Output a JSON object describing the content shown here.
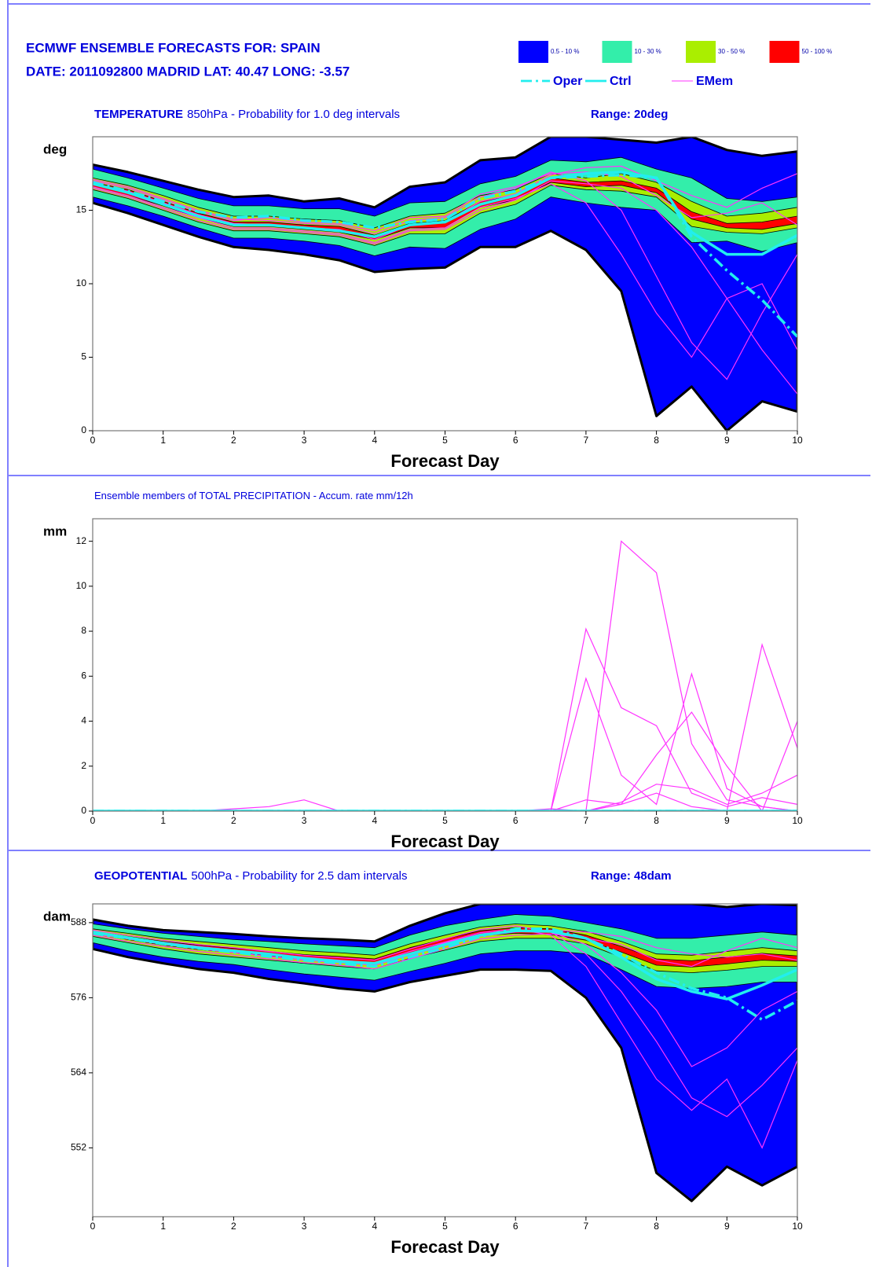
{
  "header": {
    "title": "ECMWF ENSEMBLE FORECASTS FOR:  SPAIN",
    "subtitle": "DATE: 2011092800  MADRID  LAT: 40.47  LONG: -3.57"
  },
  "legend": {
    "bands": [
      {
        "label": "0.5 - 10 %",
        "color": "#0000ff"
      },
      {
        "label": "10 - 30 %",
        "color": "#33eeaa"
      },
      {
        "label": "30 - 50 %",
        "color": "#aaee00"
      },
      {
        "label": "50 - 100 %",
        "color": "#ff0000"
      }
    ],
    "lines": [
      {
        "label": "Oper",
        "color": "#22eeee",
        "style": "dash-dot"
      },
      {
        "label": "Ctrl",
        "color": "#22eeee",
        "style": "solid"
      },
      {
        "label": "EMem",
        "color": "#ff33ff",
        "style": "thin"
      }
    ]
  },
  "chart_data": [
    {
      "type": "ensemble",
      "title": {
        "param": "TEMPERATURE",
        "detail": "850hPa - Probability for 1.0 deg intervals"
      },
      "range": "Range: 20deg",
      "ylabel": "deg",
      "xlabel": "Forecast Day",
      "x": [
        0,
        0.5,
        1,
        1.5,
        2,
        2.5,
        3,
        3.5,
        4,
        4.5,
        5,
        5.5,
        6,
        6.5,
        7,
        7.5,
        8,
        8.5,
        9,
        9.5,
        10
      ],
      "xlim": [
        0,
        10
      ],
      "xticks": [
        0,
        1,
        2,
        3,
        4,
        5,
        6,
        7,
        8,
        9,
        10
      ],
      "ylim": [
        0,
        20
      ],
      "yticks": [
        0,
        5,
        10,
        15
      ],
      "bands": [
        {
          "upper": [
            18.1,
            17.6,
            17.0,
            16.4,
            15.9,
            16.0,
            15.6,
            15.8,
            15.2,
            16.6,
            16.9,
            18.4,
            18.6,
            20,
            20,
            19.8,
            19.6,
            20,
            19.1,
            18.7,
            19.0
          ],
          "lower": [
            15.5,
            14.8,
            14.0,
            13.2,
            12.5,
            12.3,
            12.0,
            11.6,
            10.8,
            11.0,
            11.1,
            12.5,
            12.5,
            13.6,
            12.3,
            9.5,
            1.0,
            3.0,
            0.0,
            2.0,
            1.3
          ]
        },
        {
          "upper": [
            17.8,
            17.2,
            16.5,
            15.8,
            15.3,
            15.3,
            15.1,
            15.1,
            14.6,
            15.5,
            15.6,
            16.8,
            17.3,
            18.4,
            18.3,
            18.6,
            17.8,
            17.2,
            15.8,
            15.6,
            15.9
          ],
          "lower": [
            15.9,
            15.3,
            14.6,
            13.8,
            13.1,
            13.1,
            12.9,
            12.6,
            11.9,
            12.5,
            12.4,
            13.7,
            14.4,
            15.9,
            15.5,
            15.2,
            15.0,
            12.8,
            12.9,
            12.2,
            12.8
          ]
        },
        {
          "upper": [
            17.2,
            16.7,
            16.0,
            15.2,
            14.6,
            14.6,
            14.4,
            14.3,
            13.8,
            14.6,
            14.8,
            16.0,
            16.4,
            17.5,
            17.2,
            17.5,
            16.9,
            15.6,
            14.6,
            14.8,
            15.2
          ],
          "lower": [
            16.4,
            15.8,
            15.0,
            14.2,
            13.6,
            13.6,
            13.4,
            13.2,
            12.6,
            13.4,
            13.4,
            14.8,
            15.4,
            16.7,
            16.4,
            16.3,
            15.9,
            13.9,
            13.5,
            13.4,
            13.8
          ]
        },
        {
          "upper": [
            16.9,
            16.4,
            15.6,
            14.8,
            14.2,
            14.2,
            14.0,
            13.9,
            13.3,
            14.1,
            14.3,
            15.6,
            16.0,
            17.2,
            16.9,
            17.0,
            16.5,
            14.9,
            14.1,
            14.2,
            14.6
          ],
          "lower": [
            16.6,
            16.0,
            15.3,
            14.5,
            13.9,
            13.9,
            13.7,
            13.5,
            13.0,
            13.8,
            13.8,
            15.2,
            15.7,
            16.9,
            16.6,
            16.7,
            16.2,
            14.4,
            13.8,
            13.7,
            14.1
          ]
        }
      ],
      "members": [
        [
          17.1,
          16.6,
          15.8,
          15.0,
          14.4,
          14.3,
          14.1,
          14.0,
          13.4,
          14.3,
          14.5,
          15.9,
          16.5,
          17.6,
          17.0,
          15.0,
          10.5,
          6.0,
          3.5,
          8.0,
          12.0
        ],
        [
          16.5,
          15.9,
          15.1,
          14.3,
          13.7,
          13.7,
          13.5,
          13.3,
          12.7,
          13.6,
          13.7,
          15.0,
          15.7,
          17.0,
          16.8,
          16.5,
          15.0,
          12.5,
          9.0,
          5.5,
          2.5
        ],
        [
          16.8,
          16.3,
          15.5,
          14.7,
          14.1,
          14.0,
          13.8,
          13.7,
          13.0,
          14.0,
          14.2,
          15.6,
          16.1,
          17.4,
          17.9,
          18.0,
          17.0,
          16.0,
          15.2,
          16.5,
          17.5
        ],
        [
          16.6,
          16.0,
          15.2,
          14.5,
          13.8,
          13.8,
          13.6,
          13.4,
          12.8,
          13.7,
          13.8,
          15.2,
          15.8,
          16.8,
          15.5,
          12.0,
          8.0,
          5.0,
          9.0,
          10.0,
          5.5
        ],
        [
          17.0,
          16.5,
          15.7,
          14.9,
          14.3,
          14.5,
          14.2,
          14.1,
          13.6,
          14.5,
          14.6,
          16.1,
          16.6,
          17.5,
          17.6,
          17.3,
          16.0,
          14.5,
          14.8,
          15.5,
          14.0
        ]
      ],
      "oper": [
        16.9,
        16.3,
        15.6,
        14.9,
        14.5,
        14.6,
        14.3,
        14.2,
        13.8,
        14.2,
        14.4,
        15.8,
        16.3,
        17.2,
        17.3,
        17.4,
        17.2,
        13.2,
        10.9,
        8.9,
        6.4
      ],
      "ctrl": [
        16.8,
        16.2,
        15.4,
        14.6,
        14.0,
        14.0,
        13.8,
        13.6,
        13.2,
        14.0,
        14.2,
        15.4,
        16.0,
        17.2,
        17.5,
        17.6,
        17.2,
        13.5,
        12.0,
        12.0,
        13.3
      ]
    },
    {
      "type": "members",
      "title": {
        "detail": "Ensemble members of TOTAL PRECIPITATION - Accum. rate mm/12h"
      },
      "ylabel": "mm",
      "xlabel": "Forecast Day",
      "x": [
        0,
        0.5,
        1,
        1.5,
        2,
        2.5,
        3,
        3.5,
        4,
        4.5,
        5,
        5.5,
        6,
        6.5,
        7,
        7.5,
        8,
        8.5,
        9,
        9.5,
        10
      ],
      "xlim": [
        0,
        10
      ],
      "xticks": [
        0,
        1,
        2,
        3,
        4,
        5,
        6,
        7,
        8,
        9,
        10
      ],
      "ylim": [
        0,
        13
      ],
      "yticks": [
        0,
        2,
        4,
        6,
        8,
        10,
        12
      ],
      "members": [
        [
          0,
          0,
          0,
          0,
          0,
          0,
          0,
          0,
          0,
          0,
          0,
          0,
          0,
          0,
          8.1,
          4.6,
          3.8,
          0.8,
          0.2,
          0.6,
          0.3
        ],
        [
          0,
          0,
          0,
          0,
          0,
          0,
          0,
          0,
          0,
          0,
          0,
          0,
          0,
          0.1,
          0,
          12.0,
          10.6,
          3.0,
          0.5,
          0.2,
          0
        ],
        [
          0,
          0,
          0,
          0,
          0,
          0,
          0,
          0,
          0,
          0,
          0,
          0,
          0,
          0,
          5.9,
          1.6,
          0.3,
          6.1,
          1.0,
          0.2,
          0
        ],
        [
          0,
          0,
          0,
          0,
          0,
          0,
          0,
          0,
          0,
          0,
          0,
          0,
          0,
          0,
          0,
          0.3,
          0.8,
          0.2,
          0,
          7.4,
          2.8
        ],
        [
          0,
          0,
          0,
          0,
          0,
          0,
          0,
          0,
          0,
          0,
          0,
          0,
          0,
          0,
          0.5,
          0.3,
          2.5,
          4.4,
          2.0,
          0,
          4.0
        ],
        [
          0,
          0,
          0,
          0,
          0.1,
          0.2,
          0.5,
          0,
          0,
          0,
          0,
          0,
          0,
          0,
          0,
          0.4,
          1.2,
          1.0,
          0.3,
          0.8,
          1.6
        ]
      ],
      "oper": [
        0,
        0,
        0,
        0,
        0,
        0,
        0,
        0,
        0,
        0,
        0,
        0,
        0,
        0,
        0,
        0,
        0,
        0,
        0,
        0,
        0
      ],
      "ctrl": [
        0,
        0,
        0,
        0,
        0,
        0,
        0,
        0,
        0,
        0,
        0,
        0,
        0,
        0,
        0,
        0,
        0,
        0,
        0,
        0,
        0
      ]
    },
    {
      "type": "ensemble",
      "title": {
        "param": "GEOPOTENTIAL",
        "detail": "500hPa - Probability for 2.5 dam intervals"
      },
      "range": "Range: 48dam",
      "ylabel": "dam",
      "xlabel": "Forecast Day",
      "x": [
        0,
        0.5,
        1,
        1.5,
        2,
        2.5,
        3,
        3.5,
        4,
        4.5,
        5,
        5.5,
        6,
        6.5,
        7,
        7.5,
        8,
        8.5,
        9,
        9.5,
        10
      ],
      "xlim": [
        0,
        10
      ],
      "xticks": [
        0,
        1,
        2,
        3,
        4,
        5,
        6,
        7,
        8,
        9,
        10
      ],
      "ylim": [
        541,
        591
      ],
      "yticks": [
        552,
        564,
        576,
        588
      ],
      "bands": [
        {
          "upper": [
            588.5,
            587.5,
            586.8,
            586.5,
            586.2,
            585.8,
            585.5,
            585.3,
            585.0,
            587.5,
            589.5,
            591,
            591,
            591,
            591,
            591,
            591,
            591,
            590.5,
            591,
            590.8
          ],
          "lower": [
            583.8,
            582.5,
            581.5,
            580.6,
            580.0,
            579.0,
            578.3,
            577.5,
            577.0,
            578.5,
            579.5,
            580.5,
            580.5,
            580.3,
            576,
            568,
            548,
            543.5,
            549,
            546,
            549
          ]
        },
        {
          "upper": [
            587.8,
            587.0,
            586.3,
            585.8,
            585.3,
            585.0,
            584.6,
            584.3,
            584.0,
            586.0,
            587.5,
            588.5,
            589.3,
            589.0,
            588.0,
            587.0,
            585.5,
            585.5,
            586.0,
            586.5,
            586.0
          ],
          "lower": [
            584.8,
            583.5,
            582.5,
            581.8,
            581.3,
            580.5,
            579.8,
            579.3,
            578.8,
            580.2,
            581.5,
            583.0,
            583.5,
            583.5,
            583.0,
            580.5,
            577.8,
            577.5,
            577.8,
            578.5,
            578.5
          ]
        },
        {
          "upper": [
            587.0,
            586.3,
            585.5,
            585.0,
            584.5,
            584.0,
            583.5,
            583.2,
            582.8,
            584.6,
            586.0,
            587.3,
            587.8,
            587.5,
            586.6,
            585.0,
            583.0,
            582.8,
            583.4,
            584.0,
            583.5
          ],
          "lower": [
            585.8,
            584.8,
            583.8,
            583.0,
            582.5,
            582.0,
            581.5,
            581.0,
            580.6,
            582.3,
            583.6,
            585.0,
            585.5,
            585.5,
            584.6,
            582.5,
            580.3,
            580.0,
            580.4,
            581.0,
            581.0
          ]
        },
        {
          "upper": [
            586.6,
            585.8,
            585.0,
            584.4,
            583.9,
            583.4,
            582.9,
            582.6,
            582.2,
            584.0,
            585.4,
            586.7,
            587.2,
            587.0,
            586.0,
            584.2,
            582.2,
            581.9,
            582.5,
            583.1,
            582.7
          ],
          "lower": [
            586.2,
            585.3,
            584.4,
            583.7,
            583.2,
            582.7,
            582.2,
            581.8,
            581.4,
            583.1,
            584.5,
            585.9,
            586.3,
            586.1,
            585.2,
            583.3,
            581.2,
            580.9,
            581.4,
            582.0,
            581.8
          ]
        }
      ],
      "members": [
        [
          586.8,
          586.0,
          585.2,
          584.5,
          584.0,
          583.4,
          582.8,
          582.4,
          582.0,
          583.8,
          585.4,
          586.9,
          587.5,
          586.5,
          583.0,
          577.0,
          569.0,
          560.0,
          557.0,
          562.0,
          568.0
        ],
        [
          586.0,
          585.0,
          584.2,
          583.4,
          582.8,
          582.2,
          581.6,
          581.2,
          580.6,
          582.2,
          583.8,
          585.4,
          586.0,
          586.2,
          585.5,
          584.5,
          582.0,
          581.0,
          583.5,
          585.5,
          584.0
        ],
        [
          586.4,
          585.5,
          584.6,
          583.9,
          583.4,
          582.8,
          582.2,
          581.8,
          581.3,
          583.0,
          584.8,
          586.2,
          586.8,
          586.5,
          584.5,
          580.0,
          574.0,
          565.0,
          568.0,
          574.0,
          577.0
        ],
        [
          586.2,
          585.4,
          584.5,
          583.8,
          583.2,
          582.6,
          582.0,
          581.6,
          581.2,
          582.8,
          584.3,
          585.8,
          586.5,
          586.8,
          586.5,
          585.8,
          584.0,
          583.0,
          582.5,
          583.0,
          582.0
        ],
        [
          586.6,
          585.7,
          584.9,
          584.2,
          583.6,
          583.0,
          582.5,
          582.0,
          581.6,
          583.4,
          584.9,
          586.4,
          587.0,
          586.0,
          581.0,
          572.0,
          563.0,
          558.0,
          563.0,
          552.0,
          566.0
        ]
      ],
      "oper": [
        586.3,
        585.5,
        584.6,
        583.9,
        583.3,
        582.6,
        582.0,
        581.5,
        581.0,
        582.5,
        584.0,
        585.8,
        587.0,
        587.0,
        585.5,
        583.0,
        580.0,
        577.5,
        576.0,
        572.5,
        575.5
      ],
      "ctrl": [
        586.5,
        585.6,
        584.7,
        584.0,
        583.5,
        583.0,
        582.3,
        581.8,
        581.5,
        583.0,
        584.5,
        586.0,
        586.7,
        586.6,
        585.5,
        582.5,
        579.0,
        577.0,
        575.8,
        578.0,
        580.5
      ]
    }
  ]
}
